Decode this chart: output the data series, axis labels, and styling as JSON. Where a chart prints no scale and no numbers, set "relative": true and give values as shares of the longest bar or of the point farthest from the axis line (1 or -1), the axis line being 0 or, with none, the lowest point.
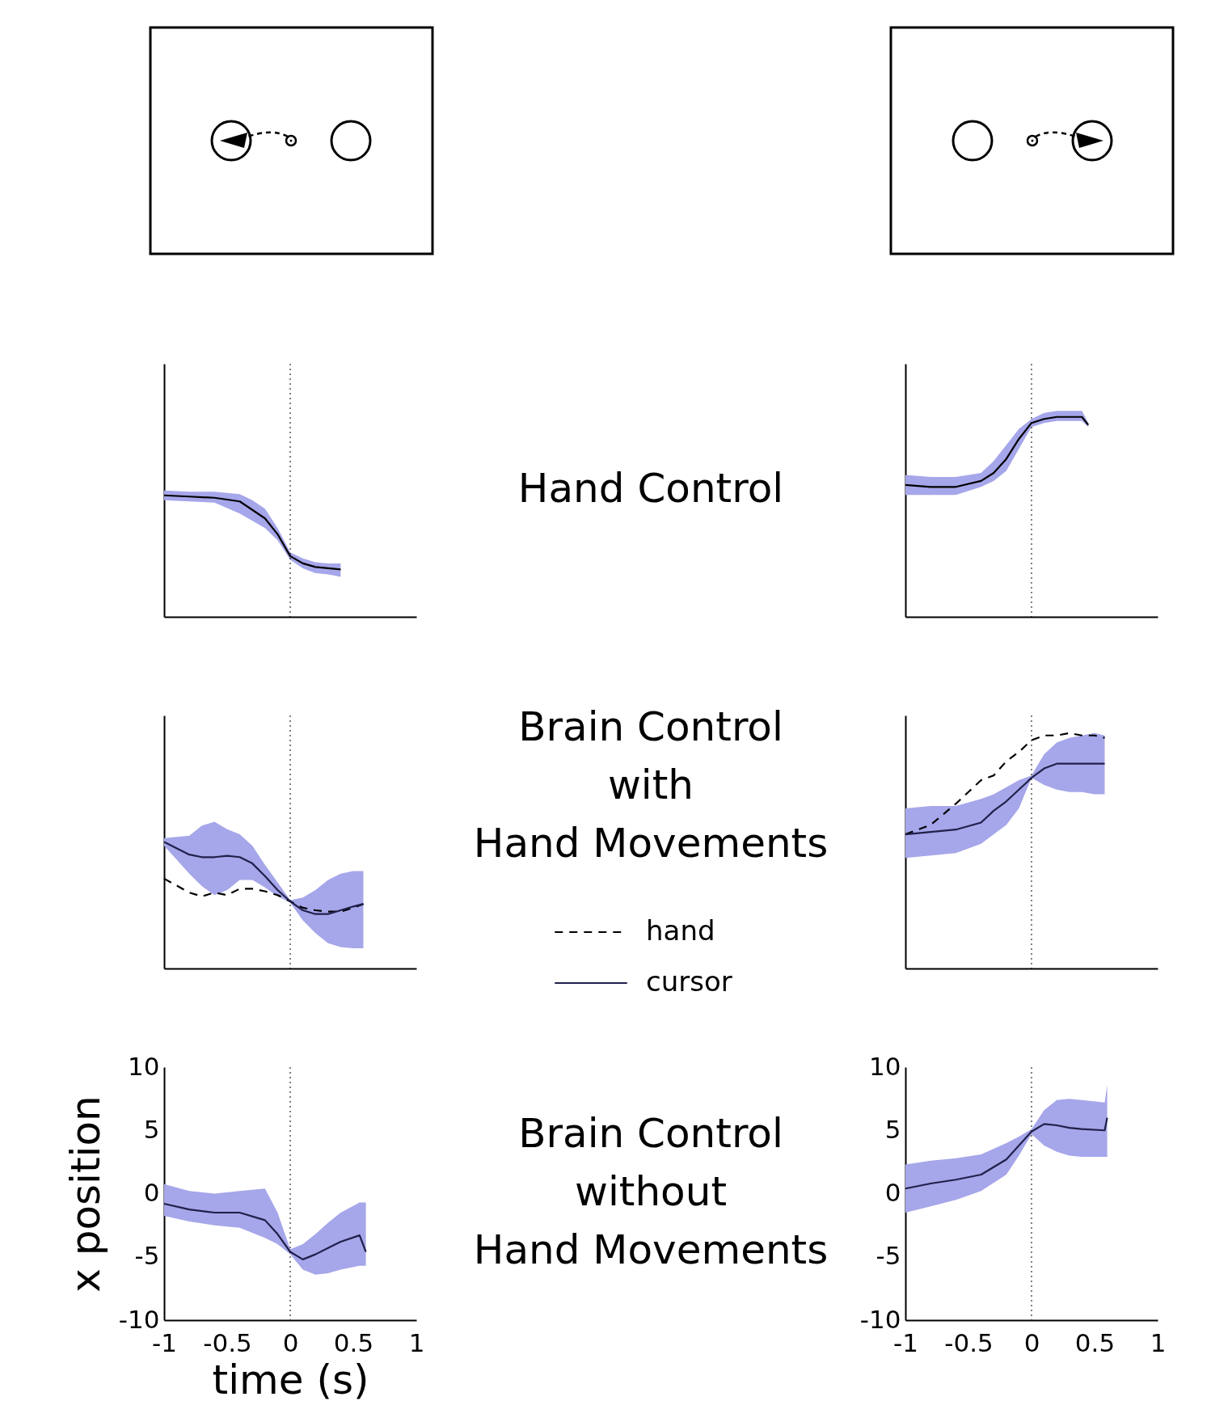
{
  "chart_data": [
    {
      "type": "line",
      "relative": true,
      "x": [
        -1,
        -0.8,
        -0.6,
        -0.4,
        -0.3,
        -0.2,
        -0.1,
        0,
        0.1,
        0.2,
        0.3,
        0.4
      ],
      "xlim": [
        -1,
        1
      ],
      "xticks": [
        -1,
        -0.5,
        0,
        0.5,
        1
      ],
      "tick_labels": false,
      "ref_lines": [
        {
          "axis": "x",
          "value": 0
        }
      ],
      "series": [
        {
          "color": "#000000",
          "values": [
            1,
            0.99,
            0.98,
            0.95,
            0.88,
            0.81,
            0.68,
            0.5,
            0.44,
            0.41,
            0.4,
            0.39
          ],
          "lower": [
            0.96,
            0.95,
            0.94,
            0.85,
            0.79,
            0.73,
            0.63,
            0.47,
            0.4,
            0.36,
            0.35,
            0.33
          ],
          "upper": [
            1.04,
            1.03,
            1.03,
            1.01,
            0.96,
            0.89,
            0.73,
            0.53,
            0.48,
            0.45,
            0.44,
            0.44
          ]
        }
      ]
    },
    {
      "type": "other",
      "title": "Hand Control"
    },
    {
      "type": "line",
      "relative": true,
      "x": [
        -1,
        -0.8,
        -0.6,
        -0.4,
        -0.3,
        -0.2,
        -0.1,
        0,
        0.1,
        0.2,
        0.3,
        0.4,
        0.45
      ],
      "xlim": [
        -1,
        1
      ],
      "xticks": [
        -1,
        -0.5,
        0,
        0.5,
        1
      ],
      "tick_labels": false,
      "ref_lines": [
        {
          "axis": "x",
          "value": 0
        }
      ],
      "series": [
        {
          "color": "#000000",
          "values": [
            0.66,
            0.65,
            0.65,
            0.68,
            0.72,
            0.79,
            0.89,
            0.97,
            0.99,
            1,
            1,
            1,
            0.96
          ],
          "lower": [
            0.61,
            0.61,
            0.61,
            0.65,
            0.68,
            0.73,
            0.84,
            0.95,
            0.97,
            0.98,
            0.98,
            0.98,
            0.95
          ],
          "upper": [
            0.71,
            0.7,
            0.7,
            0.72,
            0.78,
            0.86,
            0.94,
            0.99,
            1.02,
            1.03,
            1.03,
            1.03,
            0.97
          ]
        }
      ]
    },
    {
      "type": "line",
      "relative": true,
      "x": [
        -1,
        -0.8,
        -0.7,
        -0.6,
        -0.5,
        -0.4,
        -0.3,
        -0.2,
        -0.1,
        0,
        0.1,
        0.2,
        0.3,
        0.4,
        0.5,
        0.58
      ],
      "xlim": [
        -1,
        1
      ],
      "xticks": [
        -1,
        -0.5,
        0,
        0.5,
        1
      ],
      "tick_labels": false,
      "legend": "right",
      "ref_lines": [
        {
          "axis": "x",
          "value": 0
        }
      ],
      "series": [
        {
          "name": "hand",
          "color": "#000000",
          "line_style": "dashed",
          "values": [
            0.71,
            0.6,
            0.57,
            0.6,
            0.58,
            0.63,
            0.63,
            0.61,
            0.58,
            0.53,
            0.48,
            0.46,
            0.45,
            0.45,
            0.48,
            0.51
          ]
        },
        {
          "name": "cursor",
          "color": "#20204a",
          "line_style": "solid",
          "values": [
            1,
            0.9,
            0.88,
            0.88,
            0.89,
            0.88,
            0.83,
            0.73,
            0.62,
            0.53,
            0.46,
            0.43,
            0.43,
            0.46,
            0.49,
            0.51
          ],
          "lower": [
            0.97,
            0.75,
            0.65,
            0.58,
            0.62,
            0.7,
            0.7,
            0.64,
            0.57,
            0.52,
            0.38,
            0.28,
            0.2,
            0.17,
            0.16,
            0.16
          ],
          "upper": [
            1.03,
            1.05,
            1.13,
            1.16,
            1.1,
            1.06,
            0.97,
            0.82,
            0.68,
            0.54,
            0.56,
            0.62,
            0.7,
            0.75,
            0.77,
            0.77
          ]
        }
      ]
    },
    {
      "type": "other",
      "title": "Brain Control\nwith\nHand Movements"
    },
    {
      "type": "line",
      "relative": true,
      "x": [
        -1,
        -0.8,
        -0.6,
        -0.4,
        -0.3,
        -0.2,
        -0.1,
        0,
        0.1,
        0.2,
        0.3,
        0.4,
        0.5,
        0.58
      ],
      "xlim": [
        -1,
        1
      ],
      "xticks": [
        -1,
        -0.5,
        0,
        0.5,
        1
      ],
      "tick_labels": false,
      "ref_lines": [
        {
          "axis": "x",
          "value": 0
        }
      ],
      "series": [
        {
          "color": "#000000",
          "line_style": "dashed",
          "values": [
            0.57,
            0.61,
            0.7,
            0.8,
            0.82,
            0.88,
            0.92,
            0.97,
            0.99,
            0.99,
            1,
            0.99,
            0.99,
            0.98
          ]
        },
        {
          "color": "#20204a",
          "line_style": "solid",
          "values": [
            0.57,
            0.58,
            0.59,
            0.62,
            0.67,
            0.71,
            0.76,
            0.81,
            0.85,
            0.87,
            0.87,
            0.87,
            0.87,
            0.87
          ],
          "lower": [
            0.47,
            0.48,
            0.49,
            0.53,
            0.57,
            0.61,
            0.68,
            0.81,
            0.78,
            0.76,
            0.75,
            0.75,
            0.74,
            0.74
          ],
          "upper": [
            0.68,
            0.69,
            0.69,
            0.72,
            0.74,
            0.77,
            0.8,
            0.82,
            0.91,
            0.96,
            0.98,
            0.99,
            1,
            0.99
          ]
        }
      ]
    },
    {
      "type": "line",
      "x": [
        -1,
        -0.8,
        -0.6,
        -0.4,
        -0.2,
        -0.1,
        0,
        0.1,
        0.2,
        0.3,
        0.4,
        0.55,
        0.6
      ],
      "xlim": [
        -1,
        1
      ],
      "ylim": [
        -10,
        10
      ],
      "xticks": [
        -1,
        -0.5,
        0,
        0.5,
        1
      ],
      "yticks": [
        10,
        5,
        0,
        -5,
        -10
      ],
      "xlabel": "time (s)",
      "ylabel": "x position",
      "ref_lines": [
        {
          "axis": "x",
          "value": 0
        }
      ],
      "series": [
        {
          "color": "#20204a",
          "values": [
            -0.8,
            -1.25,
            -1.5,
            -1.5,
            -2.1,
            -3.2,
            -4.6,
            -5.2,
            -4.8,
            -4.3,
            -3.8,
            -3.3,
            -4.6
          ],
          "lower": [
            -1.75,
            -2.2,
            -2.5,
            -2.7,
            -3.5,
            -4.0,
            -4.8,
            -6.0,
            -6.4,
            -6.3,
            -6.0,
            -5.7,
            -5.7
          ],
          "upper": [
            0.75,
            0.2,
            0,
            0.2,
            0.4,
            -1.5,
            -4.4,
            -4.0,
            -3.2,
            -2.3,
            -1.5,
            -0.7,
            -0.7
          ]
        }
      ]
    },
    {
      "type": "other",
      "title": "Brain Control\nwithout\nHand Movements"
    },
    {
      "type": "line",
      "x": [
        -1,
        -0.8,
        -0.6,
        -0.4,
        -0.2,
        -0.1,
        0,
        0.1,
        0.2,
        0.3,
        0.4,
        0.58,
        0.6
      ],
      "xlim": [
        -1,
        1
      ],
      "ylim": [
        -10,
        10
      ],
      "xticks": [
        -1,
        -0.5,
        0,
        0.5,
        1
      ],
      "yticks": [
        10,
        5,
        0,
        -5,
        -10
      ],
      "ref_lines": [
        {
          "axis": "x",
          "value": 0
        }
      ],
      "series": [
        {
          "color": "#20204a",
          "values": [
            0.4,
            0.8,
            1.1,
            1.5,
            2.7,
            3.8,
            4.9,
            5.5,
            5.4,
            5.2,
            5.1,
            5.0,
            6.0
          ],
          "lower": [
            -1.5,
            -1.0,
            -0.5,
            0.2,
            1.5,
            3.0,
            4.7,
            3.8,
            3.3,
            3.0,
            2.9,
            2.9,
            2.9
          ],
          "upper": [
            2.3,
            2.6,
            2.8,
            3.1,
            4.0,
            4.5,
            5.1,
            6.6,
            7.4,
            7.5,
            7.4,
            7.2,
            8.6
          ]
        }
      ]
    }
  ]
}
